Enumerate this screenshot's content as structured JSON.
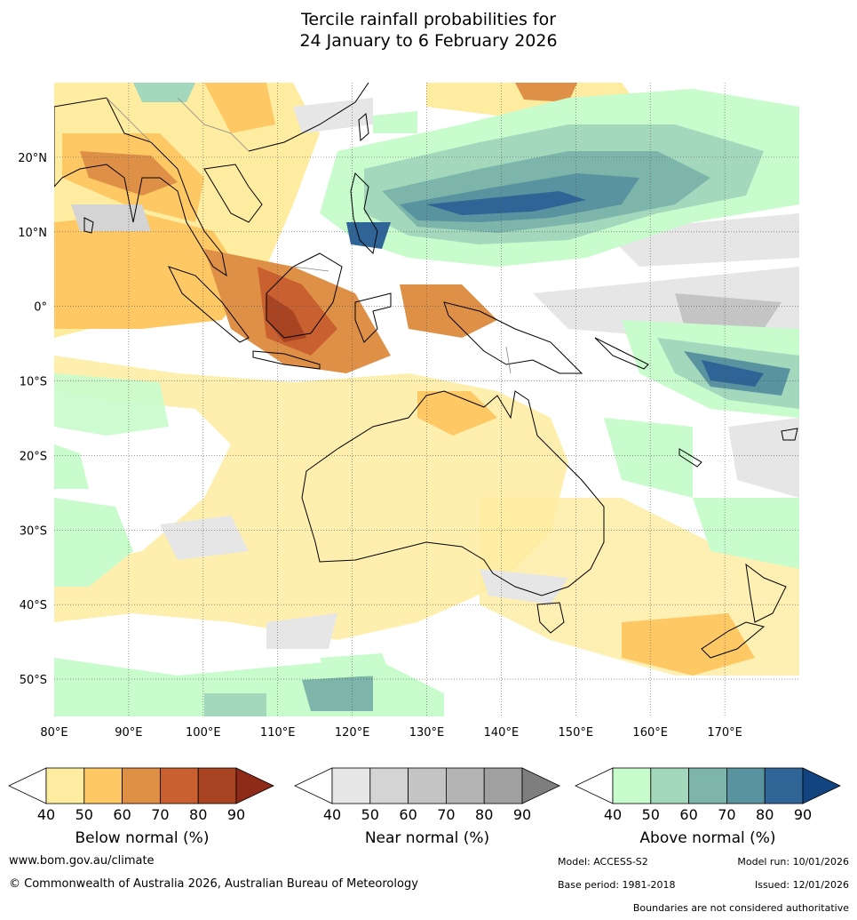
{
  "title": {
    "line1": "Tercile rainfall probabilities for",
    "line2": "24 January to 6 February 2026"
  },
  "map": {
    "lon_range": [
      80,
      180
    ],
    "lat_range": [
      -55,
      30
    ],
    "lon_ticks": [
      "80°E",
      "90°E",
      "100°E",
      "110°E",
      "120°E",
      "130°E",
      "140°E",
      "150°E",
      "160°E",
      "170°E"
    ],
    "lat_ticks": [
      "20°N",
      "10°N",
      "0°",
      "10°S",
      "20°S",
      "30°S",
      "40°S",
      "50°S"
    ],
    "gridlines": true
  },
  "colorbars": [
    {
      "label": "Below normal (%)",
      "ticks": [
        "40",
        "50",
        "60",
        "70",
        "80",
        "90"
      ],
      "colors": [
        "#ffffff",
        "#feeca0",
        "#fec965",
        "#de9047",
        "#c8602f",
        "#a84422",
        "#8e2a18"
      ]
    },
    {
      "label": "Near normal (%)",
      "ticks": [
        "40",
        "50",
        "60",
        "70",
        "80",
        "90"
      ],
      "colors": [
        "#ffffff",
        "#e6e6e6",
        "#d4d4d4",
        "#c4c4c4",
        "#b4b4b4",
        "#a0a0a0",
        "#7e7e7e"
      ]
    },
    {
      "label": "Above normal (%)",
      "ticks": [
        "40",
        "50",
        "60",
        "70",
        "80",
        "90"
      ],
      "colors": [
        "#ffffff",
        "#c8fccc",
        "#a3d8bd",
        "#7db5aa",
        "#5a93a0",
        "#2f6596",
        "#12457f"
      ]
    }
  ],
  "footer": {
    "url": "www.bom.gov.au/climate",
    "copyright": "© Commonwealth of Australia 2026, Australian Bureau of Meteorology",
    "model": "Model: ACCESS-S2",
    "model_run": "Model run: 10/01/2026",
    "base_period": "Base period: 1981-2018",
    "issued": "Issued: 12/01/2026",
    "disclaimer": "Boundaries are not considered authoritative"
  }
}
